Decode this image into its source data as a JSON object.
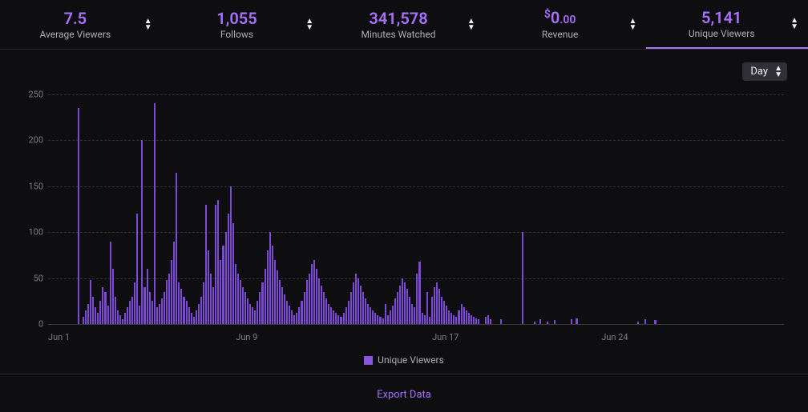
{
  "metrics": [
    {
      "value": "7.5",
      "label": "Average Viewers",
      "active": false
    },
    {
      "value": "1,055",
      "label": "Follows",
      "active": false
    },
    {
      "value": "341,578",
      "label": "Minutes Watched",
      "active": false
    },
    {
      "value_html": "<span class='currency'>$</span>0<span class='cents'>.00</span>",
      "label": "Revenue",
      "active": false
    },
    {
      "value": "5,141",
      "label": "Unique Viewers",
      "active": true
    }
  ],
  "granularity": {
    "selected": "Day"
  },
  "legend": {
    "label": "Unique Viewers",
    "color": "#8855db"
  },
  "export": {
    "label": "Export Data"
  },
  "chart": {
    "type": "bar",
    "series_label": "Unique Viewers",
    "bar_color": "#7c49d6",
    "grid_color": "#2e2e33",
    "axis_color": "#3a3a40",
    "background_color": "#0e0e10",
    "ylim": [
      0,
      250
    ],
    "ytick_step": 50,
    "y_ticks": [
      0,
      50,
      100,
      150,
      200,
      250
    ],
    "x_ticks": [
      {
        "label": "Jun 1",
        "pos": 0.0
      },
      {
        "label": "Jun 9",
        "pos": 0.27
      },
      {
        "label": "Jun 17",
        "pos": 0.54
      },
      {
        "label": "Jun 24",
        "pos": 0.77
      }
    ],
    "values": [
      0,
      0,
      0,
      0,
      0,
      0,
      0,
      0,
      0,
      0,
      0,
      0,
      235,
      0,
      8,
      15,
      22,
      48,
      30,
      18,
      12,
      25,
      40,
      35,
      20,
      90,
      60,
      30,
      15,
      10,
      5,
      12,
      18,
      25,
      30,
      45,
      120,
      20,
      200,
      40,
      60,
      35,
      25,
      240,
      18,
      22,
      28,
      35,
      48,
      55,
      70,
      90,
      165,
      45,
      38,
      30,
      25,
      18,
      12,
      8,
      15,
      22,
      30,
      45,
      130,
      80,
      55,
      40,
      130,
      135,
      70,
      85,
      100,
      120,
      150,
      110,
      65,
      55,
      48,
      40,
      35,
      28,
      22,
      18,
      15,
      25,
      35,
      45,
      60,
      80,
      100,
      85,
      70,
      58,
      48,
      40,
      32,
      25,
      20,
      15,
      10,
      12,
      18,
      25,
      35,
      48,
      55,
      65,
      70,
      60,
      50,
      42,
      35,
      28,
      22,
      18,
      15,
      12,
      10,
      8,
      12,
      18,
      25,
      35,
      45,
      55,
      50,
      42,
      35,
      28,
      22,
      18,
      15,
      12,
      10,
      8,
      6,
      22,
      10,
      15,
      20,
      28,
      35,
      42,
      50,
      45,
      38,
      30,
      22,
      18,
      55,
      68,
      12,
      10,
      35,
      8,
      30,
      40,
      45,
      38,
      30,
      25,
      20,
      15,
      12,
      10,
      8,
      15,
      22,
      18,
      15,
      12,
      10,
      8,
      6,
      5,
      0,
      0,
      8,
      10,
      5,
      0,
      0,
      0,
      5,
      0,
      0,
      0,
      0,
      0,
      0,
      0,
      0,
      100,
      0,
      0,
      0,
      0,
      3,
      0,
      5,
      0,
      0,
      3,
      0,
      0,
      4,
      0,
      0,
      0,
      0,
      0,
      0,
      5,
      0,
      6,
      0,
      0,
      0,
      0,
      0,
      0,
      0,
      0,
      0,
      0,
      0,
      0,
      0,
      0,
      0,
      0,
      0,
      0,
      0,
      0,
      0,
      0,
      0,
      0,
      3,
      0,
      0,
      5,
      0,
      0,
      0,
      4,
      0,
      0,
      0,
      0,
      0,
      0,
      0,
      0,
      0,
      0,
      0,
      0,
      0,
      0,
      0,
      0,
      0,
      0,
      0,
      0,
      0,
      0,
      0,
      0,
      0,
      0,
      0,
      0,
      0,
      0,
      0,
      0,
      0,
      0,
      0,
      0,
      0,
      0,
      0,
      0,
      0,
      0,
      0,
      0,
      0,
      0,
      0,
      0,
      0,
      0,
      0,
      0
    ]
  }
}
